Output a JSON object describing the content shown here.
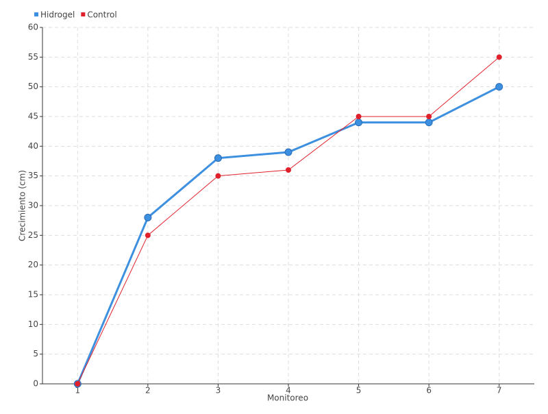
{
  "chart_data": {
    "type": "line",
    "x_label": "Monitoreo",
    "y_label": "Crecimiento (cm)",
    "categories": [
      "1",
      "2",
      "3",
      "4",
      "5",
      "6",
      "7"
    ],
    "series": [
      {
        "name": "Hidrogel",
        "color": "#3d8fe0",
        "values": [
          0,
          28,
          38,
          39,
          44,
          44,
          50
        ]
      },
      {
        "name": "Control",
        "color": "#e0202a",
        "values": [
          0,
          25,
          35,
          36,
          45,
          45,
          55
        ]
      }
    ],
    "ylim": [
      0,
      60
    ],
    "yticks": [
      0,
      5,
      10,
      15,
      20,
      25,
      30,
      35,
      40,
      45,
      50,
      55,
      60
    ],
    "grid": true,
    "legend": "top-left"
  }
}
